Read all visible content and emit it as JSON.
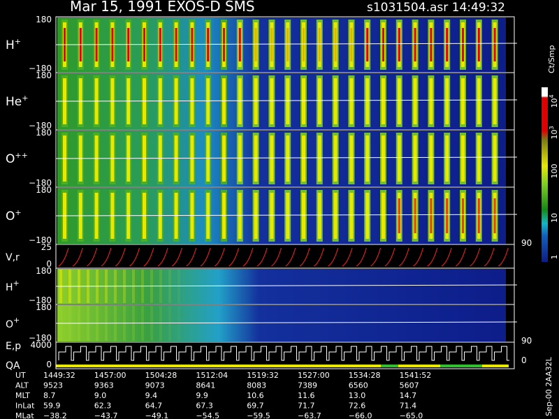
{
  "header": {
    "title": "Mar 15, 1991   EXOS-D SMS",
    "file_time": "s1031504.asr  14:49:32"
  },
  "panels": [
    {
      "label": "H",
      "sup": "+",
      "top": "180",
      "bottom": "−180"
    },
    {
      "label": "He",
      "sup": "+",
      "top": "180",
      "bottom": "−180"
    },
    {
      "label": "O",
      "sup": "++",
      "top": "180",
      "bottom": "−180"
    },
    {
      "label": "O",
      "sup": "+",
      "top": "180",
      "bottom": "−180"
    },
    {
      "label": "V,r",
      "sup": "",
      "top": "25",
      "bottom": "0",
      "right": "90"
    },
    {
      "label": "H",
      "sup": "+",
      "top": "180",
      "bottom": "−180"
    },
    {
      "label": "O",
      "sup": "+",
      "top": "180",
      "bottom": "−180",
      "right": "90"
    },
    {
      "label": "E,p",
      "sup": "",
      "top": "4000",
      "bottom": "0",
      "right": "0",
      "label2": "QA"
    }
  ],
  "colorbar": {
    "title": "Ct/Smp",
    "labels": [
      {
        "base": "10",
        "sup": "4"
      },
      {
        "base": "10",
        "sup": "3"
      },
      {
        "base": "100",
        "sup": ""
      },
      {
        "base": "10",
        "sup": ""
      },
      {
        "base": "1",
        "sup": ""
      }
    ]
  },
  "table": {
    "rows": [
      {
        "label": "UT",
        "values": [
          "1449:32",
          "1457:00",
          "1504:28",
          "1512:04",
          "1519:32",
          "1527:00",
          "1534:28",
          "1541:52"
        ]
      },
      {
        "label": "ALT",
        "values": [
          "9523",
          "9363",
          "9073",
          "8641",
          "8083",
          "7389",
          "6560",
          "5607"
        ]
      },
      {
        "label": "MLT",
        "values": [
          "8.7",
          "9.0",
          "9.4",
          "9.9",
          "10.6",
          "11.6",
          "13.0",
          "14.7"
        ]
      },
      {
        "label": "InLat",
        "values": [
          "59.9",
          "62.3",
          "64.7",
          "67.3",
          "69.7",
          "71.7",
          "72.6",
          "71.4"
        ]
      },
      {
        "label": "MLat",
        "values": [
          "−38.2",
          "−43.7",
          "−49.1",
          "−54.5",
          "−59.5",
          "−63.7",
          "−66.0",
          "−65.0"
        ]
      }
    ]
  },
  "footer_note": "Sep-00 2AA32L"
}
